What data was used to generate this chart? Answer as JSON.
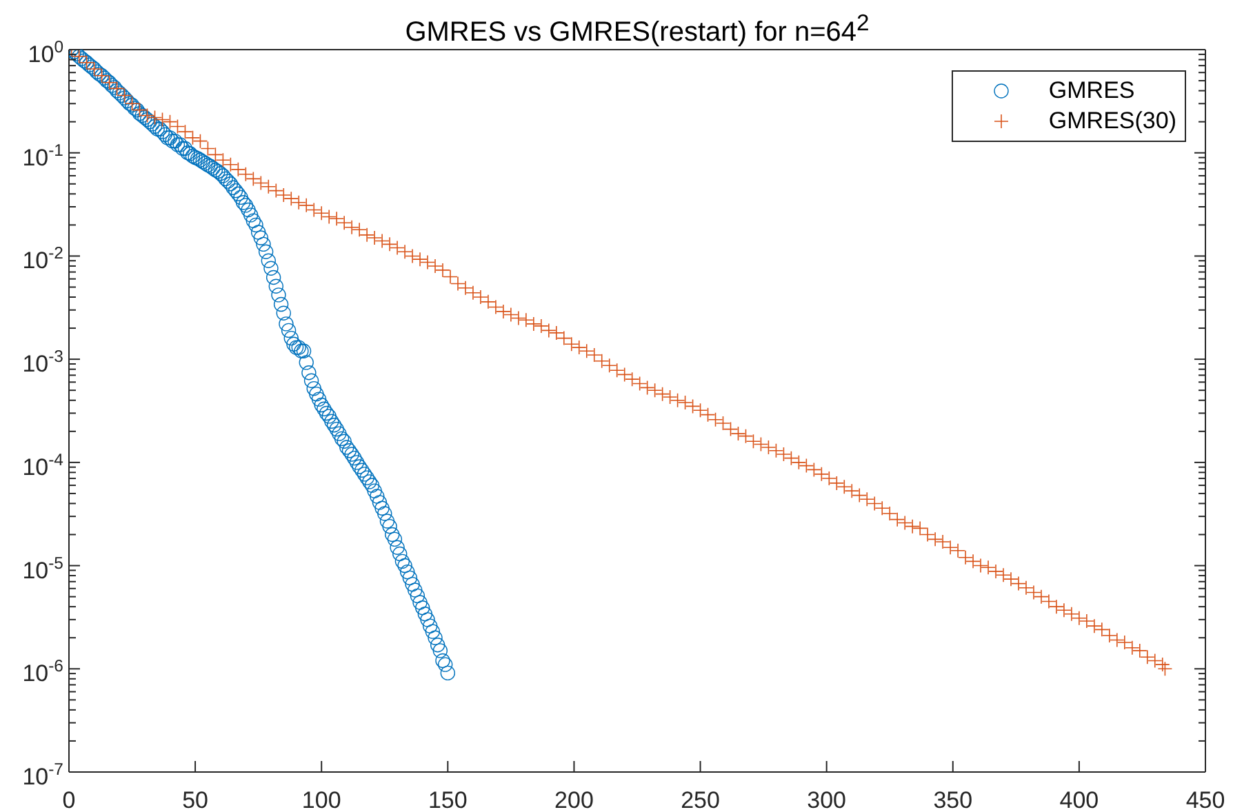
{
  "chart_data": {
    "type": "scatter",
    "title": "GMRES vs GMRES(restart) for n=64$^{2}$",
    "xlim": [
      0,
      450
    ],
    "xticks": [
      0,
      50,
      100,
      150,
      200,
      250,
      300,
      350,
      400,
      450
    ],
    "ylim": [
      1e-07,
      1
    ],
    "log": true,
    "yticks": [
      {
        "value": 1e-07,
        "label": "10$^{-7}$"
      },
      {
        "value": 2e-07,
        "label": null
      },
      {
        "value": 3e-07,
        "label": null
      },
      {
        "value": 4e-07,
        "label": null
      },
      {
        "value": 5e-07,
        "label": null
      },
      {
        "value": 6e-07,
        "label": null
      },
      {
        "value": 7e-07,
        "label": null
      },
      {
        "value": 8e-07,
        "label": null
      },
      {
        "value": 9e-07,
        "label": null
      },
      {
        "value": 1e-06,
        "label": "10$^{-6}$"
      },
      {
        "value": 2e-06,
        "label": null
      },
      {
        "value": 3e-06,
        "label": null
      },
      {
        "value": 4e-06,
        "label": null
      },
      {
        "value": 5e-06,
        "label": null
      },
      {
        "value": 6e-06,
        "label": null
      },
      {
        "value": 7e-06,
        "label": null
      },
      {
        "value": 8e-06,
        "label": null
      },
      {
        "value": 9e-06,
        "label": null
      },
      {
        "value": 1e-05,
        "label": "10$^{-5}$"
      },
      {
        "value": 2e-05,
        "label": null
      },
      {
        "value": 3e-05,
        "label": null
      },
      {
        "value": 4e-05,
        "label": null
      },
      {
        "value": 5e-05,
        "label": null
      },
      {
        "value": 6e-05,
        "label": null
      },
      {
        "value": 7e-05,
        "label": null
      },
      {
        "value": 8e-05,
        "label": null
      },
      {
        "value": 9e-05,
        "label": null
      },
      {
        "value": 0.0001,
        "label": "10$^{-4}$"
      },
      {
        "value": 0.0002,
        "label": null
      },
      {
        "value": 0.0003,
        "label": null
      },
      {
        "value": 0.0004,
        "label": null
      },
      {
        "value": 0.0005,
        "label": null
      },
      {
        "value": 0.0006,
        "label": null
      },
      {
        "value": 0.0007,
        "label": null
      },
      {
        "value": 0.0008,
        "label": null
      },
      {
        "value": 0.0009,
        "label": null
      },
      {
        "value": 0.001,
        "label": "10$^{-3}$"
      },
      {
        "value": 0.002,
        "label": null
      },
      {
        "value": 0.003,
        "label": null
      },
      {
        "value": 0.004,
        "label": null
      },
      {
        "value": 0.005,
        "label": null
      },
      {
        "value": 0.006,
        "label": null
      },
      {
        "value": 0.007,
        "label": null
      },
      {
        "value": 0.008,
        "label": null
      },
      {
        "value": 0.009,
        "label": null
      },
      {
        "value": 0.01,
        "label": "10$^{-2}$"
      },
      {
        "value": 0.02,
        "label": null
      },
      {
        "value": 0.03,
        "label": null
      },
      {
        "value": 0.04,
        "label": null
      },
      {
        "value": 0.05,
        "label": null
      },
      {
        "value": 0.06,
        "label": null
      },
      {
        "value": 0.07,
        "label": null
      },
      {
        "value": 0.08,
        "label": null
      },
      {
        "value": 0.09,
        "label": null
      },
      {
        "value": 0.1,
        "label": "10$^{-1}$"
      },
      {
        "value": 0.2,
        "label": null
      },
      {
        "value": 0.3,
        "label": null
      },
      {
        "value": 0.4,
        "label": null
      },
      {
        "value": 0.5,
        "label": null
      },
      {
        "value": 0.6,
        "label": null
      },
      {
        "value": 0.7,
        "label": null
      },
      {
        "value": 0.8,
        "label": null
      },
      {
        "value": 0.9,
        "label": null
      },
      {
        "value": 1,
        "label": "10$^{0}$"
      }
    ],
    "legend": "top right",
    "series": [
      {
        "name": "GMRES",
        "color": "#0072bd",
        "marker": "circle",
        "x": [
          1,
          2,
          3,
          4,
          5,
          6,
          7,
          8,
          9,
          10,
          11,
          12,
          13,
          14,
          15,
          16,
          17,
          18,
          19,
          20,
          21,
          22,
          23,
          24,
          25,
          26,
          27,
          28,
          29,
          30,
          31,
          32,
          33,
          34,
          35,
          36,
          37,
          38,
          39,
          40,
          41,
          42,
          43,
          44,
          45,
          46,
          47,
          48,
          49,
          50,
          51,
          52,
          53,
          54,
          55,
          56,
          57,
          58,
          59,
          60,
          61,
          62,
          63,
          64,
          65,
          66,
          67,
          68,
          69,
          70,
          71,
          72,
          73,
          74,
          75,
          76,
          77,
          78,
          79,
          80,
          81,
          82,
          83,
          84,
          85,
          86,
          87,
          88,
          89,
          90,
          91,
          92,
          93,
          94,
          95,
          96,
          97,
          98,
          99,
          100,
          101,
          102,
          103,
          104,
          105,
          106,
          107,
          108,
          109,
          110,
          111,
          112,
          113,
          114,
          115,
          116,
          117,
          118,
          119,
          120,
          121,
          122,
          123,
          124,
          125,
          126,
          127,
          128,
          129,
          130,
          131,
          132,
          133,
          134,
          135,
          136,
          137,
          138,
          139,
          140,
          141,
          142,
          143,
          144,
          145,
          146,
          147,
          148,
          149,
          150
        ],
        "values": [
          1,
          0.95,
          0.91,
          0.86,
          0.82,
          0.78,
          0.75,
          0.71,
          0.68,
          0.65,
          0.61,
          0.58,
          0.56,
          0.53,
          0.5,
          0.48,
          0.45,
          0.43,
          0.4,
          0.38,
          0.36,
          0.34,
          0.32,
          0.3,
          0.29,
          0.27,
          0.26,
          0.24,
          0.23,
          0.22,
          0.21,
          0.2,
          0.19,
          0.18,
          0.17,
          0.17,
          0.16,
          0.15,
          0.14,
          0.14,
          0.13,
          0.13,
          0.12,
          0.12,
          0.11,
          0.11,
          0.1,
          0.098,
          0.093,
          0.09,
          0.088,
          0.085,
          0.082,
          0.079,
          0.076,
          0.074,
          0.071,
          0.068,
          0.066,
          0.063,
          0.06,
          0.056,
          0.053,
          0.05,
          0.046,
          0.043,
          0.04,
          0.037,
          0.033,
          0.031,
          0.028,
          0.025,
          0.022,
          0.02,
          0.017,
          0.015,
          0.013,
          0.011,
          0.009,
          0.0076,
          0.0062,
          0.0051,
          0.0042,
          0.0034,
          0.0028,
          0.0022,
          0.0019,
          0.0016,
          0.0014,
          0.0013,
          0.0013,
          0.0012,
          0.0012,
          0.00093,
          0.00074,
          0.00062,
          0.00052,
          0.00046,
          0.00041,
          0.00036,
          0.00033,
          0.0003,
          0.00028,
          0.00025,
          0.00023,
          0.00021,
          0.00019,
          0.00017,
          0.00016,
          0.00014,
          0.00013,
          0.00012,
          0.00011,
          0.0001,
          9.1e-05,
          8.4e-05,
          7.7e-05,
          7.1e-05,
          6.5e-05,
          6e-05,
          5.3e-05,
          4.7e-05,
          4.1e-05,
          3.6e-05,
          3.2e-05,
          2.7e-05,
          2.4e-05,
          2e-05,
          1.8e-05,
          1.5e-05,
          1.3e-05,
          1.1e-05,
          1e-05,
          8.7e-06,
          7.6e-06,
          6.6e-06,
          5.8e-06,
          5.1e-06,
          4.4e-06,
          3.9e-06,
          3.4e-06,
          3e-06,
          2.6e-06,
          2.3e-06,
          2e-06,
          1.7e-06,
          1.5e-06,
          1.2e-06,
          1.1e-06,
          9.1e-07
        ]
      },
      {
        "name": "GMRES(30)",
        "color": "#d95319",
        "marker": "cross",
        "x": [
          1,
          4,
          7,
          10,
          13,
          16,
          19,
          22,
          25,
          28,
          31,
          34,
          37,
          40,
          43,
          46,
          49,
          52,
          55,
          58,
          61,
          64,
          67,
          70,
          73,
          76,
          79,
          82,
          85,
          88,
          91,
          94,
          97,
          100,
          103,
          106,
          109,
          112,
          115,
          118,
          121,
          124,
          127,
          130,
          133,
          136,
          139,
          142,
          145,
          148,
          151,
          154,
          157,
          160,
          163,
          166,
          169,
          172,
          175,
          178,
          181,
          184,
          187,
          190,
          193,
          196,
          199,
          202,
          205,
          208,
          211,
          214,
          217,
          220,
          223,
          226,
          229,
          232,
          235,
          238,
          241,
          244,
          247,
          250,
          253,
          256,
          259,
          262,
          265,
          268,
          271,
          274,
          277,
          280,
          283,
          286,
          289,
          292,
          295,
          298,
          301,
          304,
          307,
          310,
          313,
          316,
          319,
          322,
          325,
          328,
          331,
          334,
          337,
          340,
          343,
          346,
          349,
          352,
          355,
          358,
          361,
          364,
          367,
          370,
          373,
          376,
          379,
          382,
          385,
          388,
          391,
          394,
          397,
          400,
          403,
          406,
          409,
          412,
          415,
          418,
          421,
          424,
          427,
          430,
          433,
          434
        ],
        "values": [
          1,
          0.86,
          0.75,
          0.65,
          0.56,
          0.48,
          0.42,
          0.36,
          0.3,
          0.26,
          0.23,
          0.22,
          0.21,
          0.2,
          0.18,
          0.16,
          0.14,
          0.13,
          0.11,
          0.096,
          0.085,
          0.077,
          0.069,
          0.062,
          0.056,
          0.051,
          0.047,
          0.043,
          0.039,
          0.036,
          0.033,
          0.031,
          0.028,
          0.026,
          0.024,
          0.023,
          0.021,
          0.019,
          0.018,
          0.016,
          0.015,
          0.014,
          0.013,
          0.012,
          0.011,
          0.01,
          0.0093,
          0.0087,
          0.008,
          0.0073,
          0.0063,
          0.0054,
          0.0049,
          0.0044,
          0.004,
          0.0036,
          0.0032,
          0.0029,
          0.0027,
          0.0025,
          0.0024,
          0.0022,
          0.0021,
          0.0019,
          0.0018,
          0.0016,
          0.0014,
          0.0013,
          0.0012,
          0.0011,
          0.00096,
          0.00087,
          0.00078,
          0.00071,
          0.00064,
          0.00058,
          0.00053,
          0.0005,
          0.00046,
          0.00043,
          0.0004,
          0.00038,
          0.00035,
          0.00032,
          0.00029,
          0.00026,
          0.00024,
          0.00021,
          0.00019,
          0.00018,
          0.00016,
          0.00015,
          0.00014,
          0.00013,
          0.00012,
          0.00011,
          0.0001,
          9.3e-05,
          8.5e-05,
          7.7e-05,
          7e-05,
          6.3e-05,
          5.8e-05,
          5.3e-05,
          4.8e-05,
          4.4e-05,
          4e-05,
          3.6e-05,
          3.2e-05,
          2.8e-05,
          2.6e-05,
          2.4e-05,
          2.3e-05,
          2e-05,
          1.8e-05,
          1.7e-05,
          1.5e-05,
          1.4e-05,
          1.2e-05,
          1.1e-05,
          1e-05,
          9.6e-06,
          8.8e-06,
          8.1e-06,
          7.4e-06,
          6.7e-06,
          6.1e-06,
          5.5e-06,
          5e-06,
          4.5e-06,
          4e-06,
          3.7e-06,
          3.4e-06,
          3.1e-06,
          2.9e-06,
          2.6e-06,
          2.4e-06,
          2.1e-06,
          1.9e-06,
          1.8e-06,
          1.6e-06,
          1.5e-06,
          1.3e-06,
          1.2e-06,
          1.1e-06,
          1e-06
        ]
      }
    ]
  }
}
